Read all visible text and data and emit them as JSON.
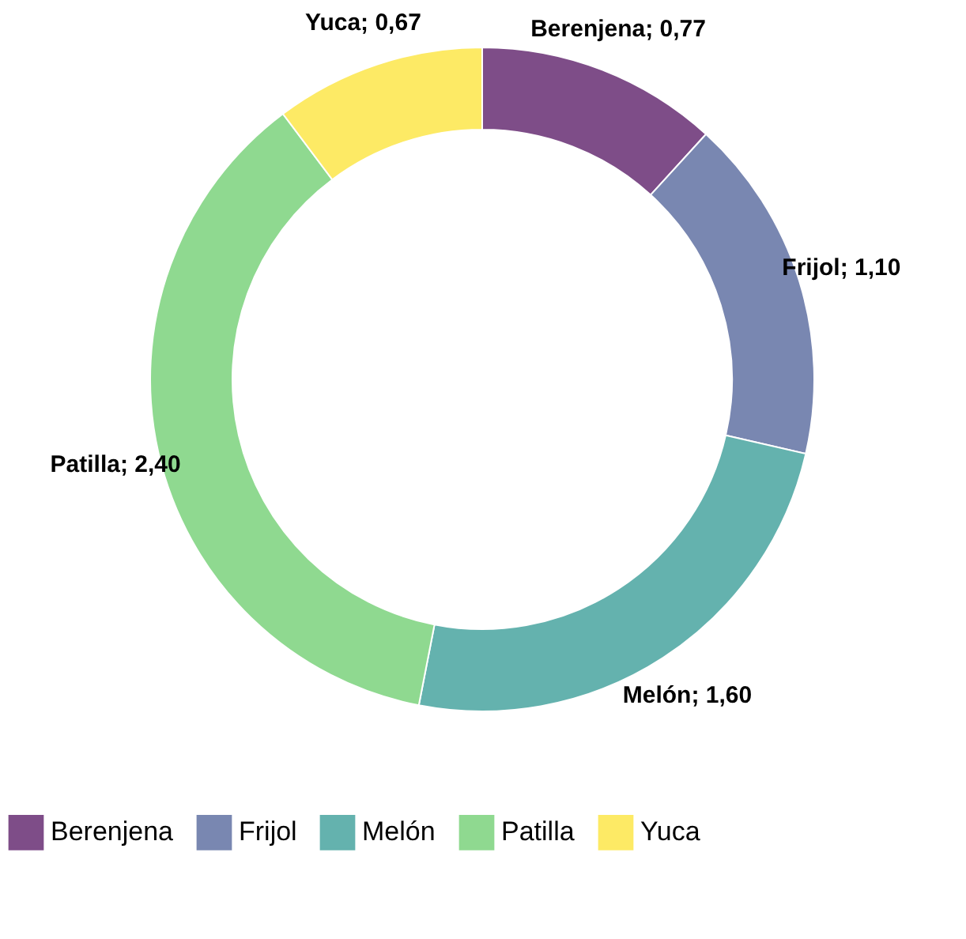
{
  "chart_data": {
    "type": "donut",
    "categories": [
      "Berenjena",
      "Frijol",
      "Melón",
      "Patilla",
      "Yuca"
    ],
    "values": [
      0.77,
      1.1,
      1.6,
      2.4,
      0.67
    ],
    "value_labels": [
      "Berenjena; 0,77",
      "Frijol; 1,10",
      "Melón; 1,60",
      "Patilla; 2,40",
      "Yuca; 0,67"
    ],
    "colors": [
      "#7e4d88",
      "#7987b1",
      "#64b2ae",
      "#8fd990",
      "#fdea65"
    ],
    "legend": "bottom"
  }
}
